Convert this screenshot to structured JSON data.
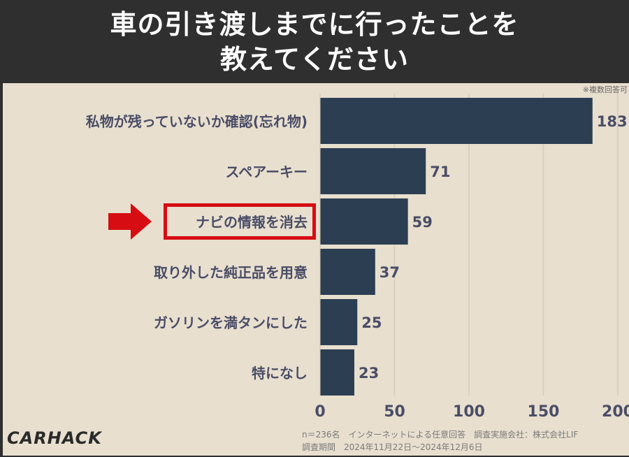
{
  "header": {
    "title_line1": "車の引き渡しまでに行ったことを",
    "title_line2": "教えてください"
  },
  "note": "※複数回答可",
  "footer": {
    "line1": "n＝236名　インターネットによる任意回答　調査実施会社：株式会社LIF",
    "line2": "調査期間　2024年11月22日〜2024年12月6日"
  },
  "logo": "CARHACK",
  "colors": {
    "bar": "#2c3e52",
    "text": "#4a4d66",
    "highlight": "#d60d12",
    "background": "#e8dfcf"
  },
  "highlighted_category": "ナビの情報を消去",
  "chart_data": {
    "type": "bar",
    "orientation": "horizontal",
    "categories": [
      "私物が残っていないか確認(忘れ物)",
      "スペアーキー",
      "ナビの情報を消去",
      "取り外した純正品を用意",
      "ガソリンを満タンにした",
      "特になし"
    ],
    "values": [
      183,
      71,
      59,
      37,
      25,
      23
    ],
    "xlim": [
      0,
      200
    ],
    "xticks": [
      0,
      50,
      100,
      150,
      200
    ],
    "grid": "vertical"
  }
}
